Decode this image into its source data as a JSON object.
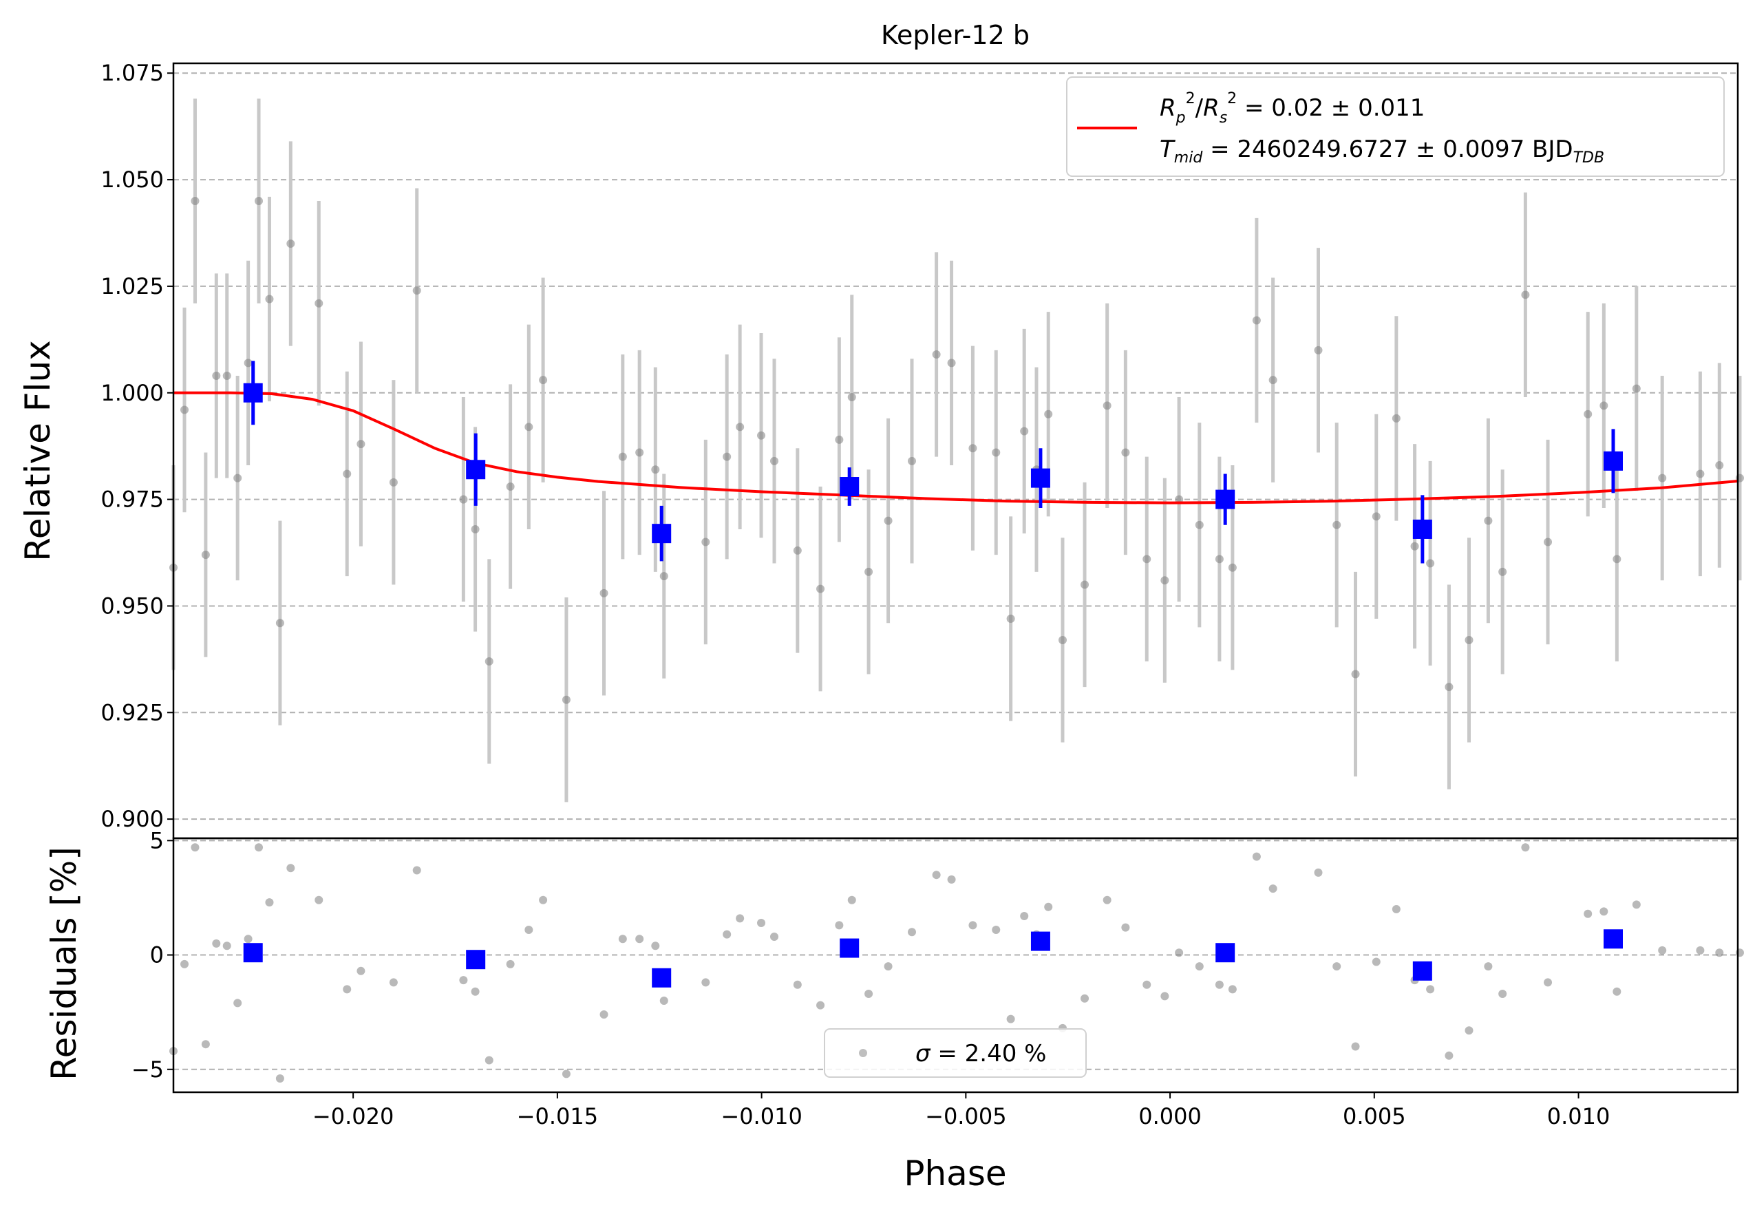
{
  "chart_data": [
    {
      "type": "scatter",
      "title": "Kepler-12 b",
      "xlabel": "",
      "ylabel": "Relative Flux",
      "xlim": [
        -0.0244,
        0.0139
      ],
      "ylim": [
        0.8955,
        1.0773
      ],
      "yticks": [
        0.9,
        0.925,
        0.95,
        0.975,
        1.0,
        1.025,
        1.05,
        1.075
      ],
      "ytick_labels": [
        "0.900",
        "0.925",
        "0.950",
        "0.975",
        "1.000",
        "1.025",
        "1.050",
        "1.075"
      ],
      "grid": "y-dashed",
      "colors": {
        "raw": "#808080",
        "raw_err": "#c8c8c8",
        "binned": "#0000ff",
        "model": "#ff0000"
      },
      "legend": {
        "position": "top-right",
        "label_ratio": "R",
        "label_ratio_value": "= 0.02 ± 0.011",
        "label_tmid": "T",
        "label_tmid_sub": "mid",
        "label_tmid_value": "= 2460249.6727 ± 0.0097 BJD",
        "label_tmid_unit_sub": "TDB"
      },
      "raw": {
        "x": [
          -0.0244,
          -0.02413,
          -0.02387,
          -0.02361,
          -0.02335,
          -0.02309,
          -0.02283,
          -0.02257,
          -0.02231,
          -0.02205,
          -0.02179,
          -0.02153,
          -0.02084,
          -0.02015,
          -0.01981,
          -0.01901,
          -0.01844,
          -0.0173,
          -0.01701,
          -0.01667,
          -0.01615,
          -0.0157,
          -0.01535,
          -0.01478,
          -0.01386,
          -0.0134,
          -0.01299,
          -0.0126,
          -0.01239,
          -0.01137,
          -0.01085,
          -0.01053,
          -0.01001,
          -0.00969,
          -0.00912,
          -0.00856,
          -0.0081,
          -0.00779,
          -0.00738,
          -0.0069,
          -0.00632,
          -0.00572,
          -0.00535,
          -0.00483,
          -0.00426,
          -0.0039,
          -0.00357,
          -0.00327,
          -0.00298,
          -0.00263,
          -0.00209,
          -0.00154,
          -0.00109,
          -0.00057,
          -0.00013,
          0.00022,
          0.00072,
          0.00121,
          0.00153,
          0.00212,
          0.00252,
          0.00363,
          0.00408,
          0.00454,
          0.00505,
          0.00554,
          0.00599,
          0.00637,
          0.00683,
          0.00732,
          0.00779,
          0.00814,
          0.0087,
          0.00925,
          0.01023,
          0.01062,
          0.01094,
          0.01142,
          0.01205,
          0.01298,
          0.01345,
          0.01395
        ],
        "y": [
          0.959,
          0.996,
          1.045,
          0.962,
          1.004,
          1.004,
          0.98,
          1.007,
          1.045,
          1.022,
          0.946,
          1.035,
          1.021,
          0.981,
          0.988,
          0.979,
          1.024,
          0.975,
          0.968,
          0.937,
          0.978,
          0.992,
          1.003,
          0.928,
          0.953,
          0.985,
          0.986,
          0.982,
          0.957,
          0.965,
          0.985,
          0.992,
          0.99,
          0.984,
          0.963,
          0.954,
          0.989,
          0.999,
          0.958,
          0.97,
          0.984,
          1.009,
          1.007,
          0.987,
          0.986,
          0.947,
          0.991,
          0.982,
          0.995,
          0.942,
          0.955,
          0.997,
          0.986,
          0.961,
          0.956,
          0.975,
          0.969,
          0.961,
          0.959,
          1.017,
          1.003,
          1.01,
          0.969,
          0.934,
          0.971,
          0.994,
          0.964,
          0.96,
          0.931,
          0.942,
          0.97,
          0.958,
          1.023,
          0.965,
          0.995,
          0.997,
          0.961,
          1.001,
          0.98,
          0.981,
          0.983,
          0.98
        ],
        "yerr": 0.024
      },
      "binned": {
        "x": [
          -0.02245,
          -0.017,
          -0.01245,
          -0.00785,
          -0.00317,
          0.00135,
          0.00618,
          0.01085
        ],
        "y": [
          1.0,
          0.982,
          0.967,
          0.978,
          0.98,
          0.975,
          0.968,
          0.984
        ],
        "yerr": [
          0.0075,
          0.0085,
          0.0065,
          0.0045,
          0.007,
          0.006,
          0.008,
          0.0075
        ]
      },
      "model": {
        "x": [
          -0.0244,
          -0.023,
          -0.022,
          -0.021,
          -0.02,
          -0.019,
          -0.018,
          -0.017,
          -0.016,
          -0.015,
          -0.014,
          -0.012,
          -0.01,
          -0.008,
          -0.006,
          -0.004,
          -0.002,
          0.0,
          0.002,
          0.004,
          0.006,
          0.008,
          0.01,
          0.012,
          0.0139
        ],
        "y": [
          1.0,
          1.0,
          0.9998,
          0.9985,
          0.9958,
          0.9915,
          0.987,
          0.9835,
          0.9815,
          0.9802,
          0.9792,
          0.9778,
          0.9768,
          0.976,
          0.9752,
          0.9746,
          0.9743,
          0.9742,
          0.9743,
          0.9746,
          0.9751,
          0.9757,
          0.9766,
          0.9777,
          0.9793
        ]
      }
    },
    {
      "type": "scatter",
      "xlabel": "Phase",
      "ylabel": "Residuals [%]",
      "xlim": [
        -0.0244,
        0.0139
      ],
      "ylim": [
        -6.0,
        5.1
      ],
      "yticks": [
        -5,
        0,
        5
      ],
      "ytick_labels": [
        "−5",
        "0",
        "5"
      ],
      "xticks": [
        -0.02,
        -0.015,
        -0.01,
        -0.005,
        0.0,
        0.005,
        0.01
      ],
      "xtick_labels": [
        "−0.020",
        "−0.015",
        "−0.010",
        "−0.005",
        "0.000",
        "0.005",
        "0.010"
      ],
      "grid": "y-dashed",
      "legend": {
        "position": "bottom-center",
        "label_symbol": "σ",
        "label_value": "= 2.40 %"
      },
      "raw": {
        "x": [
          -0.0244,
          -0.02413,
          -0.02387,
          -0.02361,
          -0.02335,
          -0.02309,
          -0.02283,
          -0.02257,
          -0.02231,
          -0.02205,
          -0.02179,
          -0.02153,
          -0.02084,
          -0.02015,
          -0.01981,
          -0.01901,
          -0.01844,
          -0.0173,
          -0.01701,
          -0.01667,
          -0.01615,
          -0.0157,
          -0.01535,
          -0.01478,
          -0.01386,
          -0.0134,
          -0.01299,
          -0.0126,
          -0.01239,
          -0.01137,
          -0.01085,
          -0.01053,
          -0.01001,
          -0.00969,
          -0.00912,
          -0.00856,
          -0.0081,
          -0.00779,
          -0.00738,
          -0.0069,
          -0.00632,
          -0.00572,
          -0.00535,
          -0.00483,
          -0.00426,
          -0.0039,
          -0.00357,
          -0.00327,
          -0.00298,
          -0.00263,
          -0.00209,
          -0.00154,
          -0.00109,
          -0.00057,
          -0.00013,
          0.00022,
          0.00072,
          0.00121,
          0.00153,
          0.00212,
          0.00252,
          0.00363,
          0.00408,
          0.00454,
          0.00505,
          0.00554,
          0.00599,
          0.00637,
          0.00683,
          0.00732,
          0.00779,
          0.00814,
          0.0087,
          0.00925,
          0.01023,
          0.01062,
          0.01094,
          0.01142,
          0.01205,
          0.01298,
          0.01345,
          0.01395
        ],
        "y": [
          -4.2,
          -0.4,
          4.7,
          -3.9,
          0.5,
          0.4,
          -2.1,
          0.7,
          4.7,
          2.3,
          -5.4,
          3.8,
          2.4,
          -1.5,
          -0.7,
          -1.2,
          3.7,
          -1.1,
          -1.6,
          -4.6,
          -0.4,
          1.1,
          2.4,
          -5.2,
          -2.6,
          0.7,
          0.7,
          0.4,
          -2.0,
          -1.2,
          0.9,
          1.6,
          1.4,
          0.8,
          -1.3,
          -2.2,
          1.3,
          2.4,
          -1.7,
          -0.5,
          1.0,
          3.5,
          3.3,
          1.3,
          1.1,
          -2.8,
          1.7,
          0.9,
          2.1,
          -3.2,
          -1.9,
          2.4,
          1.2,
          -1.3,
          -1.8,
          0.1,
          -0.5,
          -1.3,
          -1.5,
          4.3,
          2.9,
          3.6,
          -0.5,
          -4.0,
          -0.3,
          2.0,
          -1.1,
          -1.5,
          -4.4,
          -3.3,
          -0.5,
          -1.7,
          4.7,
          -1.2,
          1.8,
          1.9,
          -1.6,
          2.2,
          0.2,
          0.2,
          0.1,
          0.1
        ]
      },
      "binned": {
        "x": [
          -0.02245,
          -0.017,
          -0.01245,
          -0.00785,
          -0.00317,
          0.00135,
          0.00618,
          0.01085
        ],
        "y": [
          0.1,
          -0.2,
          -1.0,
          0.3,
          0.6,
          0.1,
          -0.7,
          0.7
        ]
      }
    }
  ]
}
